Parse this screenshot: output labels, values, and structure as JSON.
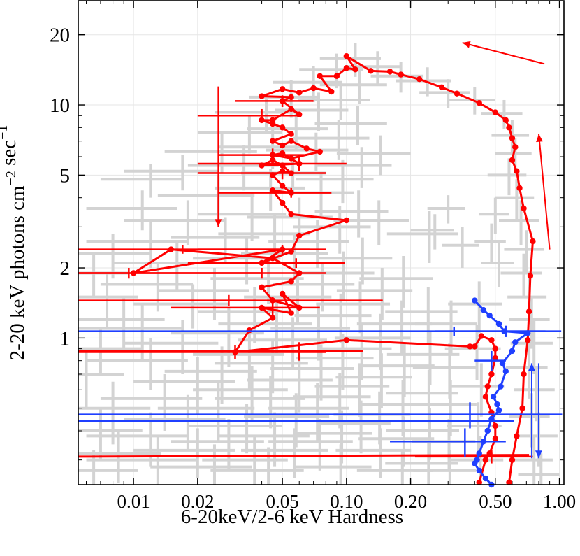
{
  "chart_data": {
    "type": "scatter",
    "title": "",
    "xlabel": "6-20keV/2-6 keV Hardness",
    "ylabel": "2-20 keV photons cm⁻² sec⁻¹",
    "xscale": "log",
    "yscale": "log",
    "xlim": [
      0.0055,
      1.05
    ],
    "ylim": [
      0.235,
      28
    ],
    "xticks": [
      0.01,
      0.02,
      0.05,
      0.1,
      0.2,
      0.5,
      1.0
    ],
    "xtick_labels": [
      "0.01",
      "0.02",
      "0.05",
      "0.10",
      "0.20",
      "0.50",
      "1.00"
    ],
    "yticks": [
      1,
      2,
      5,
      10,
      20
    ],
    "ytick_labels": [
      "1",
      "2",
      "5",
      "10",
      "20"
    ],
    "grid": true,
    "legend": "none",
    "colors": {
      "background_points": "#d3d3d3",
      "red_track": "#ff0000",
      "blue_track": "#1f3fff",
      "grid": "#e6e6e6"
    },
    "background_points": [
      [
        0.0065,
        1.9,
        0.003,
        0.4
      ],
      [
        0.008,
        2.3,
        0.004,
        0.5
      ],
      [
        0.0075,
        1.5,
        0.003,
        0.4
      ],
      [
        0.009,
        1.2,
        0.005,
        0.3
      ],
      [
        0.007,
        0.9,
        0.004,
        0.2
      ],
      [
        0.006,
        0.7,
        0.003,
        0.2
      ],
      [
        0.008,
        0.5,
        0.004,
        0.15
      ],
      [
        0.007,
        0.4,
        0.004,
        0.1
      ],
      [
        0.0085,
        0.32,
        0.005,
        0.08
      ],
      [
        0.0065,
        0.27,
        0.004,
        0.06
      ],
      [
        0.012,
        2.6,
        0.006,
        0.6
      ],
      [
        0.013,
        1.7,
        0.006,
        0.4
      ],
      [
        0.011,
        1.1,
        0.006,
        0.3
      ],
      [
        0.012,
        0.8,
        0.006,
        0.2
      ],
      [
        0.014,
        0.55,
        0.007,
        0.15
      ],
      [
        0.012,
        0.38,
        0.006,
        0.1
      ],
      [
        0.013,
        0.3,
        0.007,
        0.08
      ],
      [
        0.012,
        4.8,
        0.005,
        0.8
      ],
      [
        0.011,
        3.6,
        0.005,
        0.7
      ],
      [
        0.018,
        3.2,
        0.009,
        0.7
      ],
      [
        0.016,
        2.1,
        0.008,
        0.5
      ],
      [
        0.019,
        1.4,
        0.009,
        0.3
      ],
      [
        0.017,
        0.95,
        0.008,
        0.25
      ],
      [
        0.02,
        0.65,
        0.01,
        0.18
      ],
      [
        0.018,
        0.45,
        0.009,
        0.12
      ],
      [
        0.02,
        0.33,
        0.01,
        0.08
      ],
      [
        0.017,
        5.2,
        0.008,
        0.9
      ],
      [
        0.025,
        4.1,
        0.012,
        0.9
      ],
      [
        0.027,
        2.7,
        0.012,
        0.6
      ],
      [
        0.024,
        1.6,
        0.011,
        0.4
      ],
      [
        0.028,
        1.05,
        0.013,
        0.3
      ],
      [
        0.026,
        0.72,
        0.012,
        0.2
      ],
      [
        0.025,
        0.5,
        0.012,
        0.14
      ],
      [
        0.028,
        0.36,
        0.013,
        0.09
      ],
      [
        0.026,
        6.3,
        0.012,
        1.2
      ],
      [
        0.024,
        0.28,
        0.012,
        0.07
      ],
      [
        0.033,
        5.5,
        0.015,
        1.2
      ],
      [
        0.036,
        3.4,
        0.016,
        0.8
      ],
      [
        0.034,
        2.2,
        0.015,
        0.5
      ],
      [
        0.037,
        1.3,
        0.017,
        0.35
      ],
      [
        0.035,
        0.85,
        0.016,
        0.25
      ],
      [
        0.036,
        0.6,
        0.017,
        0.16
      ],
      [
        0.034,
        0.42,
        0.016,
        0.1
      ],
      [
        0.035,
        7.6,
        0.015,
        1.4
      ],
      [
        0.037,
        0.3,
        0.016,
        0.08
      ],
      [
        0.042,
        9.3,
        0.018,
        1.8
      ],
      [
        0.045,
        6.6,
        0.02,
        1.3
      ],
      [
        0.044,
        4.4,
        0.02,
        0.9
      ],
      [
        0.046,
        2.8,
        0.021,
        0.6
      ],
      [
        0.043,
        1.8,
        0.02,
        0.4
      ],
      [
        0.047,
        1.15,
        0.022,
        0.3
      ],
      [
        0.045,
        0.78,
        0.021,
        0.2
      ],
      [
        0.044,
        0.55,
        0.02,
        0.14
      ],
      [
        0.046,
        0.38,
        0.021,
        0.1
      ],
      [
        0.043,
        0.27,
        0.02,
        0.07
      ],
      [
        0.055,
        10.8,
        0.02,
        2.0
      ],
      [
        0.058,
        7.9,
        0.024,
        1.5
      ],
      [
        0.056,
        5.1,
        0.024,
        1.0
      ],
      [
        0.06,
        3.3,
        0.026,
        0.7
      ],
      [
        0.057,
        2.3,
        0.025,
        0.5
      ],
      [
        0.059,
        1.5,
        0.026,
        0.35
      ],
      [
        0.056,
        0.98,
        0.025,
        0.25
      ],
      [
        0.06,
        0.66,
        0.026,
        0.18
      ],
      [
        0.058,
        0.46,
        0.025,
        0.12
      ],
      [
        0.057,
        0.33,
        0.025,
        0.08
      ],
      [
        0.07,
        12.5,
        0.025,
        2.2
      ],
      [
        0.074,
        9.5,
        0.028,
        1.8
      ],
      [
        0.072,
        6.4,
        0.03,
        1.2
      ],
      [
        0.076,
        4.2,
        0.032,
        0.9
      ],
      [
        0.073,
        2.6,
        0.03,
        0.6
      ],
      [
        0.077,
        1.7,
        0.032,
        0.4
      ],
      [
        0.074,
        1.1,
        0.03,
        0.3
      ],
      [
        0.076,
        0.74,
        0.032,
        0.2
      ],
      [
        0.073,
        0.5,
        0.03,
        0.14
      ],
      [
        0.075,
        0.36,
        0.032,
        0.09
      ],
      [
        0.09,
        14.2,
        0.03,
        2.4
      ],
      [
        0.094,
        10.5,
        0.035,
        1.9
      ],
      [
        0.092,
        7.2,
        0.036,
        1.4
      ],
      [
        0.096,
        4.8,
        0.038,
        1.0
      ],
      [
        0.093,
        3.0,
        0.037,
        0.7
      ],
      [
        0.097,
        1.9,
        0.038,
        0.45
      ],
      [
        0.094,
        1.25,
        0.037,
        0.3
      ],
      [
        0.096,
        0.82,
        0.038,
        0.22
      ],
      [
        0.093,
        0.56,
        0.037,
        0.15
      ],
      [
        0.095,
        0.39,
        0.037,
        0.1
      ],
      [
        0.094,
        0.28,
        0.037,
        0.07
      ],
      [
        0.11,
        15.8,
        0.035,
        2.6
      ],
      [
        0.115,
        12.2,
        0.04,
        2.1
      ],
      [
        0.113,
        8.3,
        0.042,
        1.6
      ],
      [
        0.118,
        5.5,
        0.045,
        1.1
      ],
      [
        0.114,
        3.5,
        0.043,
        0.8
      ],
      [
        0.119,
        2.2,
        0.045,
        0.5
      ],
      [
        0.116,
        1.4,
        0.044,
        0.35
      ],
      [
        0.118,
        0.9,
        0.045,
        0.24
      ],
      [
        0.115,
        0.62,
        0.044,
        0.16
      ],
      [
        0.117,
        0.43,
        0.044,
        0.11
      ],
      [
        0.14,
        14.6,
        0.04,
        2.4
      ],
      [
        0.145,
        6.2,
        0.055,
        1.2
      ],
      [
        0.142,
        3.2,
        0.055,
        0.7
      ],
      [
        0.147,
        1.6,
        0.057,
        0.4
      ],
      [
        0.144,
        1.0,
        0.056,
        0.27
      ],
      [
        0.146,
        0.68,
        0.057,
        0.18
      ],
      [
        0.143,
        0.47,
        0.056,
        0.12
      ],
      [
        0.145,
        0.33,
        0.056,
        0.08
      ],
      [
        0.18,
        13.3,
        0.05,
        2.0
      ],
      [
        0.185,
        1.8,
        0.07,
        0.45
      ],
      [
        0.182,
        1.15,
        0.07,
        0.3
      ],
      [
        0.187,
        0.76,
        0.072,
        0.2
      ],
      [
        0.184,
        0.52,
        0.071,
        0.14
      ],
      [
        0.186,
        0.37,
        0.072,
        0.09
      ],
      [
        0.183,
        0.27,
        0.071,
        0.06
      ],
      [
        0.24,
        12.7,
        0.07,
        1.8
      ],
      [
        0.245,
        2.8,
        0.09,
        0.7
      ],
      [
        0.242,
        1.3,
        0.09,
        0.35
      ],
      [
        0.247,
        0.85,
        0.092,
        0.22
      ],
      [
        0.244,
        0.58,
        0.091,
        0.15
      ],
      [
        0.246,
        0.4,
        0.092,
        0.1
      ],
      [
        0.243,
        0.29,
        0.091,
        0.07
      ],
      [
        0.3,
        11.3,
        0.08,
        1.6
      ],
      [
        0.31,
        1.15,
        0.1,
        0.3
      ],
      [
        0.305,
        0.75,
        0.1,
        0.2
      ],
      [
        0.308,
        0.52,
        0.1,
        0.14
      ],
      [
        0.303,
        0.36,
        0.1,
        0.09
      ],
      [
        0.306,
        0.27,
        0.1,
        0.06
      ],
      [
        0.4,
        10.5,
        0.1,
        1.4
      ],
      [
        0.42,
        1.4,
        0.12,
        0.35
      ],
      [
        0.41,
        0.9,
        0.12,
        0.24
      ],
      [
        0.43,
        0.62,
        0.12,
        0.16
      ],
      [
        0.415,
        0.42,
        0.12,
        0.11
      ],
      [
        0.425,
        0.3,
        0.12,
        0.08
      ],
      [
        0.55,
        9.2,
        0.12,
        1.3
      ],
      [
        0.6,
        7.4,
        0.12,
        1.2
      ],
      [
        0.62,
        6.2,
        0.12,
        1.0
      ],
      [
        0.58,
        5.0,
        0.12,
        0.9
      ],
      [
        0.63,
        4.0,
        0.13,
        0.8
      ],
      [
        0.66,
        3.2,
        0.14,
        0.7
      ],
      [
        0.7,
        2.4,
        0.15,
        0.5
      ],
      [
        0.68,
        1.9,
        0.15,
        0.4
      ],
      [
        0.72,
        1.5,
        0.15,
        0.35
      ],
      [
        0.74,
        1.2,
        0.16,
        0.3
      ],
      [
        0.76,
        0.95,
        0.17,
        0.25
      ],
      [
        0.72,
        0.75,
        0.16,
        0.2
      ],
      [
        0.78,
        0.6,
        0.17,
        0.16
      ],
      [
        0.74,
        0.46,
        0.16,
        0.12
      ],
      [
        0.8,
        0.38,
        0.18,
        0.1
      ],
      [
        0.76,
        0.3,
        0.17,
        0.08
      ],
      [
        0.82,
        0.26,
        0.18,
        0.06
      ],
      [
        0.5,
        3.4,
        0.08,
        0.6
      ],
      [
        0.48,
        2.6,
        0.08,
        0.5
      ],
      [
        0.52,
        2.1,
        0.09,
        0.45
      ],
      [
        0.3,
        3.6,
        0.06,
        0.5
      ],
      [
        0.35,
        2.5,
        0.07,
        0.5
      ],
      [
        0.26,
        2.9,
        0.06,
        0.5
      ]
    ],
    "red_track": [
      [
        0.42,
        0.24
      ],
      [
        0.45,
        0.3
      ],
      [
        0.47,
        0.32
      ],
      [
        0.5,
        0.37
      ],
      [
        0.5,
        0.42
      ],
      [
        0.48,
        0.48
      ],
      [
        0.45,
        0.56
      ],
      [
        0.46,
        0.62
      ],
      [
        0.48,
        0.7
      ],
      [
        0.5,
        0.82
      ],
      [
        0.5,
        0.9
      ],
      [
        0.48,
        0.98
      ],
      [
        0.43,
        1.02
      ],
      [
        0.4,
        0.92
      ],
      [
        0.38,
        0.92
      ],
      [
        0.1,
        0.98
      ],
      [
        0.03,
        0.87
      ],
      [
        0.035,
        1.08
      ],
      [
        0.045,
        1.22
      ],
      [
        0.04,
        1.35
      ],
      [
        0.055,
        1.28
      ],
      [
        0.05,
        1.55
      ],
      [
        0.06,
        1.35
      ],
      [
        0.045,
        1.45
      ],
      [
        0.04,
        1.65
      ],
      [
        0.055,
        1.75
      ],
      [
        0.06,
        1.9
      ],
      [
        0.045,
        2.2
      ],
      [
        0.015,
        2.4
      ],
      [
        0.01,
        1.9
      ],
      [
        0.05,
        2.4
      ],
      [
        0.04,
        2.1
      ],
      [
        0.055,
        2.35
      ],
      [
        0.06,
        2.75
      ],
      [
        0.1,
        3.2
      ],
      [
        0.055,
        3.4
      ],
      [
        0.05,
        3.8
      ],
      [
        0.045,
        4.3
      ],
      [
        0.055,
        4.2
      ],
      [
        0.05,
        4.5
      ],
      [
        0.045,
        5.0
      ],
      [
        0.05,
        5.2
      ],
      [
        0.055,
        5.1
      ],
      [
        0.05,
        5.5
      ],
      [
        0.045,
        5.8
      ],
      [
        0.04,
        5.5
      ],
      [
        0.06,
        5.6
      ],
      [
        0.05,
        6.2
      ],
      [
        0.045,
        6.1
      ],
      [
        0.055,
        5.9
      ],
      [
        0.075,
        6.3
      ],
      [
        0.065,
        6.5
      ],
      [
        0.055,
        7.0
      ],
      [
        0.05,
        6.7
      ],
      [
        0.045,
        7.0
      ],
      [
        0.055,
        7.5
      ],
      [
        0.05,
        8.0
      ],
      [
        0.045,
        8.3
      ],
      [
        0.04,
        8.6
      ],
      [
        0.045,
        8.6
      ],
      [
        0.055,
        9.6
      ],
      [
        0.06,
        9.1
      ],
      [
        0.05,
        10.4
      ],
      [
        0.055,
        10.8
      ],
      [
        0.04,
        10.9
      ],
      [
        0.05,
        11.7
      ],
      [
        0.06,
        11.3
      ],
      [
        0.07,
        11.8
      ],
      [
        0.085,
        11.4
      ],
      [
        0.075,
        13.3
      ],
      [
        0.09,
        13.3
      ],
      [
        0.1,
        14.4
      ],
      [
        0.11,
        14.2
      ],
      [
        0.1,
        16.2
      ],
      [
        0.13,
        14.0
      ],
      [
        0.16,
        13.9
      ],
      [
        0.18,
        13.5
      ],
      [
        0.22,
        12.9
      ],
      [
        0.28,
        11.9
      ],
      [
        0.33,
        11.2
      ],
      [
        0.42,
        10.2
      ],
      [
        0.5,
        9.3
      ],
      [
        0.56,
        8.6
      ],
      [
        0.58,
        8.0
      ],
      [
        0.6,
        7.2
      ],
      [
        0.62,
        6.6
      ],
      [
        0.6,
        5.8
      ],
      [
        0.63,
        5.2
      ],
      [
        0.65,
        4.4
      ],
      [
        0.68,
        3.6
      ],
      [
        0.75,
        2.6
      ],
      [
        0.73,
        1.85
      ],
      [
        0.72,
        1.3
      ],
      [
        0.71,
        0.98
      ],
      [
        0.68,
        0.7
      ],
      [
        0.67,
        0.5
      ],
      [
        0.63,
        0.38
      ],
      [
        0.6,
        0.3
      ],
      [
        0.58,
        0.24
      ]
    ],
    "red_errorbars": [
      [
        0.0055,
        0.31,
        0.0,
        0.0
      ],
      [
        0.48,
        0.31,
        0.27,
        0.02
      ],
      [
        0.0095,
        1.9,
        0.03,
        0.1
      ],
      [
        0.017,
        2.4,
        0.05,
        0.1
      ],
      [
        0.028,
        1.45,
        0.12,
        0.08
      ],
      [
        0.03,
        0.87,
        0.05,
        0.06
      ],
      [
        0.06,
        0.88,
        0.06,
        0.08
      ],
      [
        0.04,
        1.9,
        0.04,
        0.1
      ],
      [
        0.05,
        2.4,
        0.03,
        0.1
      ],
      [
        0.058,
        2.1,
        0.04,
        0.1
      ],
      [
        0.045,
        1.35,
        0.03,
        0.15
      ],
      [
        0.055,
        4.2,
        0.03,
        0.2
      ],
      [
        0.05,
        5.1,
        0.03,
        0.3
      ],
      [
        0.06,
        5.6,
        0.04,
        0.4
      ],
      [
        0.045,
        6.1,
        0.02,
        0.4
      ],
      [
        0.04,
        9.0,
        0.02,
        0.6
      ],
      [
        0.05,
        10.4,
        0.02,
        0.6
      ]
    ],
    "blue_track": [
      [
        0.4,
        1.45
      ],
      [
        0.44,
        1.32
      ],
      [
        0.47,
        1.25
      ],
      [
        0.52,
        1.15
      ],
      [
        0.55,
        1.07
      ],
      [
        0.71,
        1.05
      ],
      [
        0.62,
        0.96
      ],
      [
        0.6,
        0.88
      ],
      [
        0.54,
        0.78
      ],
      [
        0.56,
        0.72
      ],
      [
        0.53,
        0.62
      ],
      [
        0.49,
        0.56
      ],
      [
        0.51,
        0.52
      ],
      [
        0.52,
        0.49
      ],
      [
        0.48,
        0.45
      ],
      [
        0.46,
        0.4
      ],
      [
        0.44,
        0.36
      ],
      [
        0.42,
        0.32
      ],
      [
        0.41,
        0.3
      ],
      [
        0.4,
        0.29
      ],
      [
        0.42,
        0.27
      ],
      [
        0.45,
        0.25
      ],
      [
        0.48,
        0.23
      ]
    ],
    "blue_errorbars": [
      [
        0.06,
        0.44,
        0.55,
        0.0
      ],
      [
        0.32,
        1.07,
        0.7,
        0.05
      ],
      [
        0.38,
        0.47,
        0.65,
        0.06
      ],
      [
        0.36,
        0.36,
        0.2,
        0.05
      ],
      [
        0.56,
        1.07,
        0.3,
        0.06
      ],
      [
        0.48,
        0.8,
        0.08,
        0.08
      ]
    ],
    "red_arrows": [
      {
        "from": [
          0.85,
          15
        ],
        "to": [
          0.35,
          18.5
        ],
        "tip_at": "to"
      },
      {
        "from": [
          0.025,
          12
        ],
        "to": [
          0.025,
          3.0
        ],
        "tip_at": "to"
      },
      {
        "from": [
          0.9,
          2.4
        ],
        "to": [
          0.8,
          7.5
        ],
        "tip_at": "to"
      }
    ],
    "blue_arrows": [
      {
        "from": [
          0.77,
          0.78
        ],
        "to": [
          0.77,
          0.305
        ],
        "double": true
      }
    ]
  }
}
